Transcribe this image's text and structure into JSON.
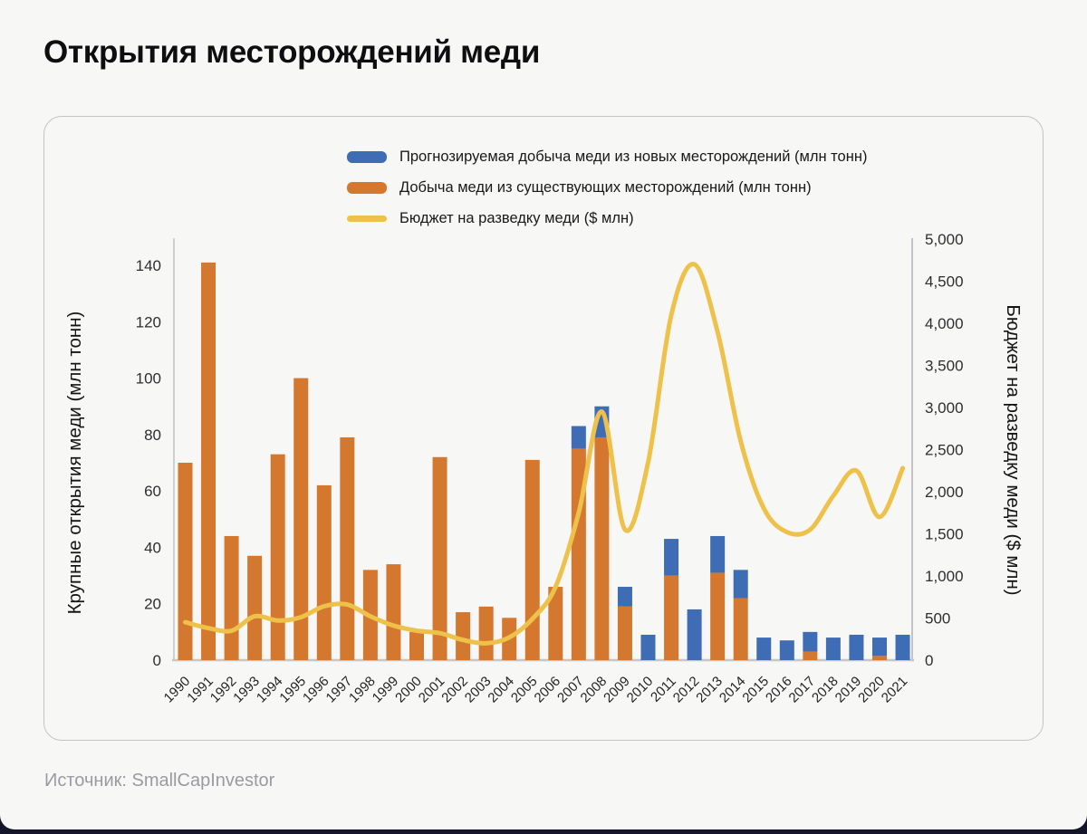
{
  "page": {
    "title": "Открытия месторождений меди",
    "source": "Источник: SmallCapInvestor"
  },
  "chart_data": {
    "type": "bar",
    "variant": "stacked-bars-with-smoothed-line-overlay",
    "grid": false,
    "legend_position": "top",
    "categories": [
      1990,
      1991,
      1992,
      1993,
      1994,
      1995,
      1996,
      1997,
      1998,
      1999,
      2000,
      2001,
      2002,
      2003,
      2004,
      2005,
      2006,
      2007,
      2008,
      2009,
      2010,
      2011,
      2012,
      2013,
      2014,
      2015,
      2016,
      2017,
      2018,
      2019,
      2020,
      2021
    ],
    "series": [
      {
        "name": "Прогнозируемая добыча меди из новых месторождений (млн тонн)",
        "type": "bar",
        "stack": "top",
        "axis": "left",
        "color": "#3e6cb5",
        "values": [
          0,
          0,
          0,
          0,
          0,
          0,
          0,
          0,
          0,
          0,
          0,
          0,
          0,
          0,
          0,
          0,
          0,
          8,
          11,
          7,
          9,
          13,
          18,
          13,
          10,
          8,
          7,
          7,
          8,
          9,
          6.5,
          9
        ]
      },
      {
        "name": "Добыча меди из существующих месторождений (млн тонн)",
        "type": "bar",
        "stack": "bottom",
        "axis": "left",
        "color": "#d5782f",
        "values": [
          70,
          141,
          44,
          37,
          73,
          100,
          62,
          79,
          32,
          34,
          10,
          72,
          17,
          19,
          15,
          71,
          26,
          75,
          79,
          19,
          0,
          30,
          0,
          31,
          22,
          0,
          0,
          3,
          0,
          0,
          1.5,
          0
        ]
      },
      {
        "name": "Бюджет на разведку меди ($ млн)",
        "type": "line",
        "axis": "right",
        "color": "#eec14a",
        "values": [
          450,
          380,
          350,
          520,
          470,
          510,
          640,
          660,
          520,
          410,
          350,
          320,
          240,
          200,
          270,
          490,
          870,
          1750,
          2950,
          1550,
          2350,
          4100,
          4700,
          3900,
          2600,
          1800,
          1520,
          1550,
          1950,
          2250,
          1700,
          2280
        ]
      }
    ],
    "left_axis": {
      "title": "Крупные открытия меди (млн тонн)",
      "min": 0,
      "max": 140,
      "tick_step": 20,
      "tick_labels": [
        "0",
        "20",
        "40",
        "60",
        "80",
        "100",
        "120",
        "140"
      ]
    },
    "right_axis": {
      "title": "Бюджет на разведку меди ($ млн)",
      "min": 0,
      "max": 5000,
      "tick_step": 500,
      "tick_labels": [
        "0",
        "500",
        "1,000",
        "1,500",
        "2,000",
        "2,500",
        "3,000",
        "3,500",
        "4,000",
        "4,500",
        "5,000"
      ]
    },
    "x_axis": {
      "tick_rotation": -45
    }
  }
}
